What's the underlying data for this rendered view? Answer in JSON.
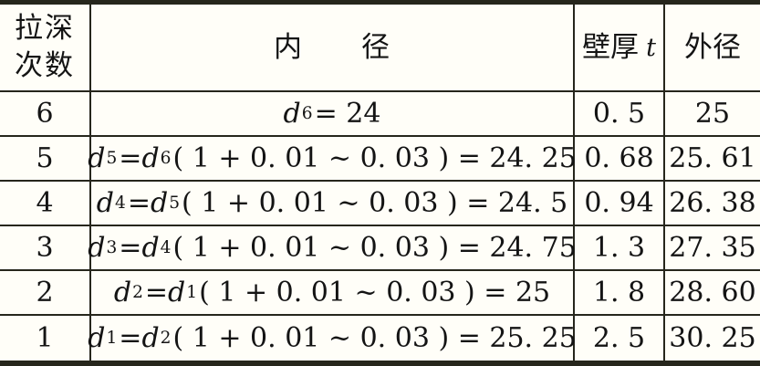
{
  "table": {
    "headers": {
      "pass_line1": "拉深",
      "pass_line2": "次数",
      "inner": "内　　径",
      "thickness_zh": "壁厚",
      "thickness_var": "t",
      "outer": "外径"
    },
    "rows": [
      {
        "pass": "6",
        "formula": "d_6 = 24",
        "t": "0. 5",
        "outer": "25"
      },
      {
        "pass": "5",
        "formula": "d_5 = d_6 ( 1 + 0. 01 ~ 0. 03 ) = 24. 25",
        "t": "0. 68",
        "outer": "25. 61"
      },
      {
        "pass": "4",
        "formula": "d_4 = d_5 ( 1 + 0. 01 ~ 0. 03 ) = 24. 5",
        "t": "0. 94",
        "outer": "26. 38"
      },
      {
        "pass": "3",
        "formula": "d_3 = d_4 ( 1 + 0. 01 ~ 0. 03 ) = 24. 75",
        "t": "1. 3",
        "outer": "27. 35"
      },
      {
        "pass": "2",
        "formula": "d_2 = d_1 ( 1 + 0. 01 ~ 0. 03 ) = 25",
        "t": "1. 8",
        "outer": "28. 60"
      },
      {
        "pass": "1",
        "formula": "d_1 = d_2 ( 1 + 0. 01 ~ 0. 03 ) = 25. 25",
        "t": "2. 5",
        "outer": "30. 25"
      }
    ],
    "colors": {
      "border": "#26261c",
      "text": "#141414",
      "background": "#fffef8"
    }
  }
}
